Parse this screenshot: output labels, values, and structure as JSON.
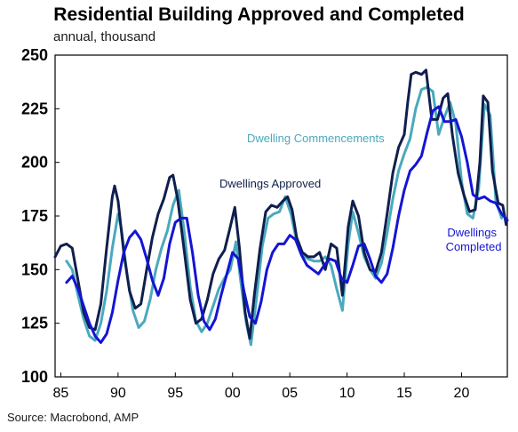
{
  "title": "Residential Building Approved and Completed",
  "units": "annual, thousand",
  "source": "Source: Macrobond, AMP",
  "chart_data": {
    "type": "line",
    "ylim": [
      100,
      250
    ],
    "xlim": [
      1984.5,
      2024
    ],
    "yticks": [
      100,
      125,
      150,
      175,
      200,
      225,
      250
    ],
    "xticks": [
      {
        "value": 1985,
        "label": "85"
      },
      {
        "value": 1990,
        "label": "90"
      },
      {
        "value": 1995,
        "label": "95"
      },
      {
        "value": 2000,
        "label": "00"
      },
      {
        "value": 2005,
        "label": "05"
      },
      {
        "value": 2010,
        "label": "10"
      },
      {
        "value": 2015,
        "label": "15"
      },
      {
        "value": 2020,
        "label": "20"
      }
    ],
    "grid": false,
    "colors": {
      "approved": "#0f1f4d",
      "commencements": "#4aa9bd",
      "completed": "#1414d4"
    },
    "annotations": {
      "approved": [
        "Dwellings Approved"
      ],
      "commencements": [
        "Dwelling Commencements"
      ],
      "completed": [
        "Dwellings",
        "Completed"
      ]
    },
    "series": [
      {
        "key": "commencements",
        "name": "Dwelling Commencements",
        "points": [
          [
            1985.5,
            154
          ],
          [
            1986,
            150
          ],
          [
            1986.5,
            138
          ],
          [
            1987,
            127
          ],
          [
            1987.5,
            119
          ],
          [
            1988,
            117
          ],
          [
            1988.5,
            125
          ],
          [
            1989,
            140
          ],
          [
            1989.5,
            160
          ],
          [
            1990,
            176
          ],
          [
            1990.3,
            169
          ],
          [
            1990.8,
            147
          ],
          [
            1991.3,
            131
          ],
          [
            1991.8,
            123
          ],
          [
            1992.3,
            126
          ],
          [
            1992.8,
            136
          ],
          [
            1993.3,
            150
          ],
          [
            1993.8,
            160
          ],
          [
            1994.3,
            168
          ],
          [
            1994.8,
            180
          ],
          [
            1995.3,
            187
          ],
          [
            1995.8,
            167
          ],
          [
            1996.3,
            142
          ],
          [
            1996.8,
            126
          ],
          [
            1997.3,
            121
          ],
          [
            1997.8,
            125
          ],
          [
            1998.3,
            133
          ],
          [
            1998.8,
            141
          ],
          [
            1999.3,
            146
          ],
          [
            1999.8,
            150
          ],
          [
            2000.3,
            163
          ],
          [
            2000.7,
            145
          ],
          [
            2001.2,
            125
          ],
          [
            2001.6,
            115
          ],
          [
            2002.1,
            137
          ],
          [
            2002.6,
            161
          ],
          [
            2003.1,
            174
          ],
          [
            2003.6,
            176
          ],
          [
            2004.1,
            177
          ],
          [
            2004.6,
            184
          ],
          [
            2005.1,
            176
          ],
          [
            2005.6,
            163
          ],
          [
            2006.1,
            157
          ],
          [
            2006.6,
            155
          ],
          [
            2007.1,
            154
          ],
          [
            2007.6,
            154
          ],
          [
            2008.1,
            156
          ],
          [
            2008.6,
            152
          ],
          [
            2009.1,
            141
          ],
          [
            2009.6,
            131
          ],
          [
            2010.1,
            162
          ],
          [
            2010.5,
            177
          ],
          [
            2011,
            167
          ],
          [
            2011.5,
            156
          ],
          [
            2012,
            150
          ],
          [
            2012.5,
            146
          ],
          [
            2013,
            153
          ],
          [
            2013.5,
            167
          ],
          [
            2014,
            183
          ],
          [
            2014.5,
            196
          ],
          [
            2015,
            204
          ],
          [
            2015.5,
            211
          ],
          [
            2016,
            225
          ],
          [
            2016.5,
            234
          ],
          [
            2017,
            235
          ],
          [
            2017.5,
            233
          ],
          [
            2018,
            213
          ],
          [
            2018.5,
            221
          ],
          [
            2019,
            228
          ],
          [
            2019.5,
            218
          ],
          [
            2020,
            191
          ],
          [
            2020.5,
            176
          ],
          [
            2021,
            174
          ],
          [
            2021.5,
            188
          ],
          [
            2022,
            227
          ],
          [
            2022.5,
            222
          ],
          [
            2023,
            182
          ],
          [
            2023.5,
            174
          ]
        ]
      },
      {
        "key": "approved",
        "name": "Dwellings Approved",
        "points": [
          [
            1984.5,
            156
          ],
          [
            1985,
            161
          ],
          [
            1985.5,
            162
          ],
          [
            1986,
            160
          ],
          [
            1986.5,
            145
          ],
          [
            1987,
            130
          ],
          [
            1987.5,
            123
          ],
          [
            1988,
            122
          ],
          [
            1988.5,
            134
          ],
          [
            1989,
            160
          ],
          [
            1989.5,
            184
          ],
          [
            1989.7,
            189
          ],
          [
            1990,
            182
          ],
          [
            1990.5,
            158
          ],
          [
            1991,
            140
          ],
          [
            1991.5,
            132
          ],
          [
            1992,
            134
          ],
          [
            1992.5,
            150
          ],
          [
            1993,
            165
          ],
          [
            1993.5,
            176
          ],
          [
            1994,
            183
          ],
          [
            1994.5,
            193
          ],
          [
            1994.8,
            194
          ],
          [
            1995.2,
            183
          ],
          [
            1995.8,
            158
          ],
          [
            1996.3,
            136
          ],
          [
            1996.8,
            125
          ],
          [
            1997.3,
            127
          ],
          [
            1997.8,
            136
          ],
          [
            1998.3,
            148
          ],
          [
            1998.8,
            155
          ],
          [
            1999.3,
            159
          ],
          [
            1999.8,
            170
          ],
          [
            2000.2,
            179
          ],
          [
            2000.6,
            160
          ],
          [
            2001.1,
            130
          ],
          [
            2001.5,
            118
          ],
          [
            2001.9,
            138
          ],
          [
            2002.4,
            160
          ],
          [
            2002.9,
            177
          ],
          [
            2003.4,
            180
          ],
          [
            2003.9,
            179
          ],
          [
            2004.4,
            182
          ],
          [
            2004.8,
            184
          ],
          [
            2005.2,
            178
          ],
          [
            2005.6,
            165
          ],
          [
            2006.1,
            158
          ],
          [
            2006.6,
            156
          ],
          [
            2007.1,
            156
          ],
          [
            2007.6,
            158
          ],
          [
            2008.1,
            150
          ],
          [
            2008.6,
            162
          ],
          [
            2009.1,
            160
          ],
          [
            2009.6,
            138
          ],
          [
            2010.1,
            170
          ],
          [
            2010.5,
            182
          ],
          [
            2011,
            175
          ],
          [
            2011.5,
            158
          ],
          [
            2012,
            150
          ],
          [
            2012.5,
            149
          ],
          [
            2013,
            158
          ],
          [
            2013.5,
            176
          ],
          [
            2014,
            195
          ],
          [
            2014.5,
            207
          ],
          [
            2015,
            213
          ],
          [
            2015.3,
            228
          ],
          [
            2015.6,
            241
          ],
          [
            2016,
            242
          ],
          [
            2016.5,
            241
          ],
          [
            2016.9,
            243
          ],
          [
            2017.4,
            220
          ],
          [
            2017.9,
            220
          ],
          [
            2018.4,
            230
          ],
          [
            2018.8,
            232
          ],
          [
            2019.2,
            213
          ],
          [
            2019.7,
            195
          ],
          [
            2020.2,
            185
          ],
          [
            2020.7,
            177
          ],
          [
            2021.2,
            178
          ],
          [
            2021.6,
            200
          ],
          [
            2021.9,
            231
          ],
          [
            2022.3,
            228
          ],
          [
            2022.7,
            196
          ],
          [
            2023.2,
            181
          ],
          [
            2023.6,
            180
          ],
          [
            2023.9,
            171
          ]
        ]
      },
      {
        "key": "completed",
        "name": "Dwellings Completed",
        "points": [
          [
            1985.5,
            144
          ],
          [
            1986,
            147
          ],
          [
            1986.5,
            141
          ],
          [
            1987,
            133
          ],
          [
            1987.5,
            125
          ],
          [
            1988,
            119
          ],
          [
            1988.5,
            116
          ],
          [
            1989,
            120
          ],
          [
            1989.5,
            130
          ],
          [
            1990,
            145
          ],
          [
            1990.5,
            158
          ],
          [
            1991,
            165
          ],
          [
            1991.5,
            168
          ],
          [
            1992,
            164
          ],
          [
            1992.5,
            155
          ],
          [
            1993,
            145
          ],
          [
            1993.5,
            138
          ],
          [
            1994,
            146
          ],
          [
            1994.5,
            162
          ],
          [
            1995,
            172
          ],
          [
            1995.5,
            174
          ],
          [
            1996,
            174
          ],
          [
            1996.5,
            158
          ],
          [
            1997,
            138
          ],
          [
            1997.5,
            126
          ],
          [
            1998,
            122
          ],
          [
            1998.5,
            127
          ],
          [
            1999,
            138
          ],
          [
            1999.5,
            148
          ],
          [
            2000,
            158
          ],
          [
            2000.5,
            155
          ],
          [
            2001,
            140
          ],
          [
            2001.5,
            128
          ],
          [
            2002,
            125
          ],
          [
            2002.5,
            135
          ],
          [
            2003,
            150
          ],
          [
            2003.5,
            158
          ],
          [
            2004,
            162
          ],
          [
            2004.5,
            162
          ],
          [
            2005,
            166
          ],
          [
            2005.5,
            164
          ],
          [
            2006,
            157
          ],
          [
            2006.5,
            152
          ],
          [
            2007,
            150
          ],
          [
            2007.5,
            148
          ],
          [
            2008,
            152
          ],
          [
            2008.5,
            155
          ],
          [
            2009,
            154
          ],
          [
            2009.5,
            146
          ],
          [
            2010,
            144
          ],
          [
            2010.5,
            152
          ],
          [
            2011,
            161
          ],
          [
            2011.5,
            162
          ],
          [
            2012,
            155
          ],
          [
            2012.5,
            147
          ],
          [
            2013,
            144
          ],
          [
            2013.5,
            148
          ],
          [
            2014,
            160
          ],
          [
            2014.5,
            175
          ],
          [
            2015,
            187
          ],
          [
            2015.5,
            196
          ],
          [
            2016,
            199
          ],
          [
            2016.5,
            203
          ],
          [
            2017,
            214
          ],
          [
            2017.5,
            224
          ],
          [
            2018,
            226
          ],
          [
            2018.5,
            219
          ],
          [
            2019,
            219
          ],
          [
            2019.5,
            220
          ],
          [
            2020,
            212
          ],
          [
            2020.5,
            200
          ],
          [
            2021,
            185
          ],
          [
            2021.5,
            183
          ],
          [
            2022,
            184
          ],
          [
            2022.5,
            182
          ],
          [
            2023,
            181
          ],
          [
            2023.5,
            176
          ],
          [
            2024,
            173
          ]
        ]
      }
    ]
  }
}
